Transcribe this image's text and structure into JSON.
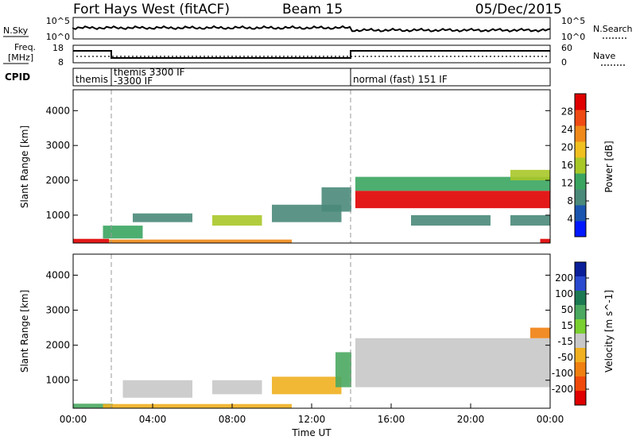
{
  "header": {
    "radar": "Fort Hays West (fitACF)",
    "beam": "Beam 15",
    "date": "05/Dec/2015"
  },
  "noise_panel": {
    "left_label": "N.Sky",
    "right_label": "N.Search",
    "left_ticks": [
      "10^5",
      "10^0"
    ],
    "right_ticks": [
      "10^5",
      "10^0"
    ]
  },
  "freq_panel": {
    "left_label_1": "Freq.",
    "left_label_2": "[MHz]",
    "left_ticks": [
      "18",
      "8"
    ],
    "right_label": "Nave",
    "right_ticks": [
      "60",
      "0"
    ]
  },
  "cpid_panel": {
    "label": "CPID",
    "segments": [
      {
        "start": 0.0,
        "end": 2.0,
        "lines": [
          "themis"
        ]
      },
      {
        "start": 2.0,
        "end": 14.0,
        "lines": [
          "themis 3300 IF",
          "-3300 IF"
        ]
      },
      {
        "start": 14.0,
        "end": 24.0,
        "lines": [
          "normal (fast) 151 IF"
        ]
      }
    ]
  },
  "chart_data": [
    {
      "type": "heatmap",
      "panel": "power",
      "ylabel": "Slant Range [km]",
      "xlim": [
        0,
        24
      ],
      "ylim": [
        200,
        4600
      ],
      "yticks": [
        "1000",
        "2000",
        "3000",
        "4000"
      ],
      "colorbar": {
        "label": "Power [dB]",
        "ticks": [
          "4",
          "8",
          "12",
          "16",
          "20",
          "24",
          "28"
        ],
        "colors": [
          "#0018ff",
          "#1a55b0",
          "#4a8a7a",
          "#3aa560",
          "#a8c828",
          "#f0c020",
          "#f08a1a",
          "#f04a14",
          "#e00000"
        ]
      },
      "regions": [
        {
          "t0": 0.0,
          "t1": 1.8,
          "r0": 200,
          "r1": 320,
          "v": 28
        },
        {
          "t0": 1.8,
          "t1": 11.0,
          "r0": 200,
          "r1": 300,
          "v": 22
        },
        {
          "t0": 1.5,
          "t1": 3.5,
          "r0": 330,
          "r1": 700,
          "v": 12
        },
        {
          "t0": 3.0,
          "t1": 6.0,
          "r0": 800,
          "r1": 1050,
          "v": 10
        },
        {
          "t0": 7.0,
          "t1": 9.5,
          "r0": 700,
          "r1": 1000,
          "v": 14
        },
        {
          "t0": 10.0,
          "t1": 13.5,
          "r0": 800,
          "r1": 1300,
          "v": 10
        },
        {
          "t0": 12.5,
          "t1": 14.0,
          "r0": 1100,
          "r1": 1800,
          "v": 9
        },
        {
          "t0": 14.2,
          "t1": 24.0,
          "r0": 1200,
          "r1": 1700,
          "v": 28
        },
        {
          "t0": 14.2,
          "t1": 24.0,
          "r0": 1700,
          "r1": 2100,
          "v": 12
        },
        {
          "t0": 17.0,
          "t1": 21.0,
          "r0": 700,
          "r1": 1000,
          "v": 10
        },
        {
          "t0": 22.0,
          "t1": 24.0,
          "r0": 700,
          "r1": 1000,
          "v": 10
        },
        {
          "t0": 22.0,
          "t1": 24.0,
          "r0": 2000,
          "r1": 2300,
          "v": 14
        },
        {
          "t0": 23.5,
          "t1": 24.0,
          "r0": 200,
          "r1": 320,
          "v": 28
        }
      ]
    },
    {
      "type": "heatmap",
      "panel": "velocity",
      "ylabel": "Slant Range [km]",
      "xlabel": "Time UT",
      "xlim": [
        0,
        24
      ],
      "ylim": [
        200,
        4600
      ],
      "yticks": [
        "1000",
        "2000",
        "3000",
        "4000"
      ],
      "xticks": [
        "00:00",
        "04:00",
        "08:00",
        "12:00",
        "16:00",
        "20:00",
        "00:00"
      ],
      "colorbar": {
        "label": "Velocity [m s^-1]",
        "ticks": [
          "200",
          "100",
          "50",
          "15",
          "-15",
          "-50",
          "-100",
          "-200"
        ],
        "colors": [
          "#0a1e9a",
          "#2a4ad0",
          "#1c7a52",
          "#4aa860",
          "#7ad030",
          "#c8c8c8",
          "#f0b020",
          "#f08010",
          "#f04a0a",
          "#e00000"
        ]
      },
      "regions": [
        {
          "t0": 0.0,
          "t1": 2.0,
          "r0": 200,
          "r1": 330,
          "v": 60
        },
        {
          "t0": 1.5,
          "t1": 11.0,
          "r0": 200,
          "r1": 320,
          "v": -40
        },
        {
          "t0": 2.5,
          "t1": 6.0,
          "r0": 500,
          "r1": 1000,
          "v": 0
        },
        {
          "t0": 7.0,
          "t1": 9.5,
          "r0": 600,
          "r1": 1000,
          "v": 0
        },
        {
          "t0": 10.0,
          "t1": 13.5,
          "r0": 600,
          "r1": 1100,
          "v": -40
        },
        {
          "t0": 13.2,
          "t1": 14.0,
          "r0": 800,
          "r1": 1800,
          "v": 60
        },
        {
          "t0": 14.2,
          "t1": 24.0,
          "r0": 800,
          "r1": 2200,
          "v": 0
        },
        {
          "t0": 23.0,
          "t1": 24.0,
          "r0": 2200,
          "r1": 2500,
          "v": -80
        }
      ]
    }
  ]
}
